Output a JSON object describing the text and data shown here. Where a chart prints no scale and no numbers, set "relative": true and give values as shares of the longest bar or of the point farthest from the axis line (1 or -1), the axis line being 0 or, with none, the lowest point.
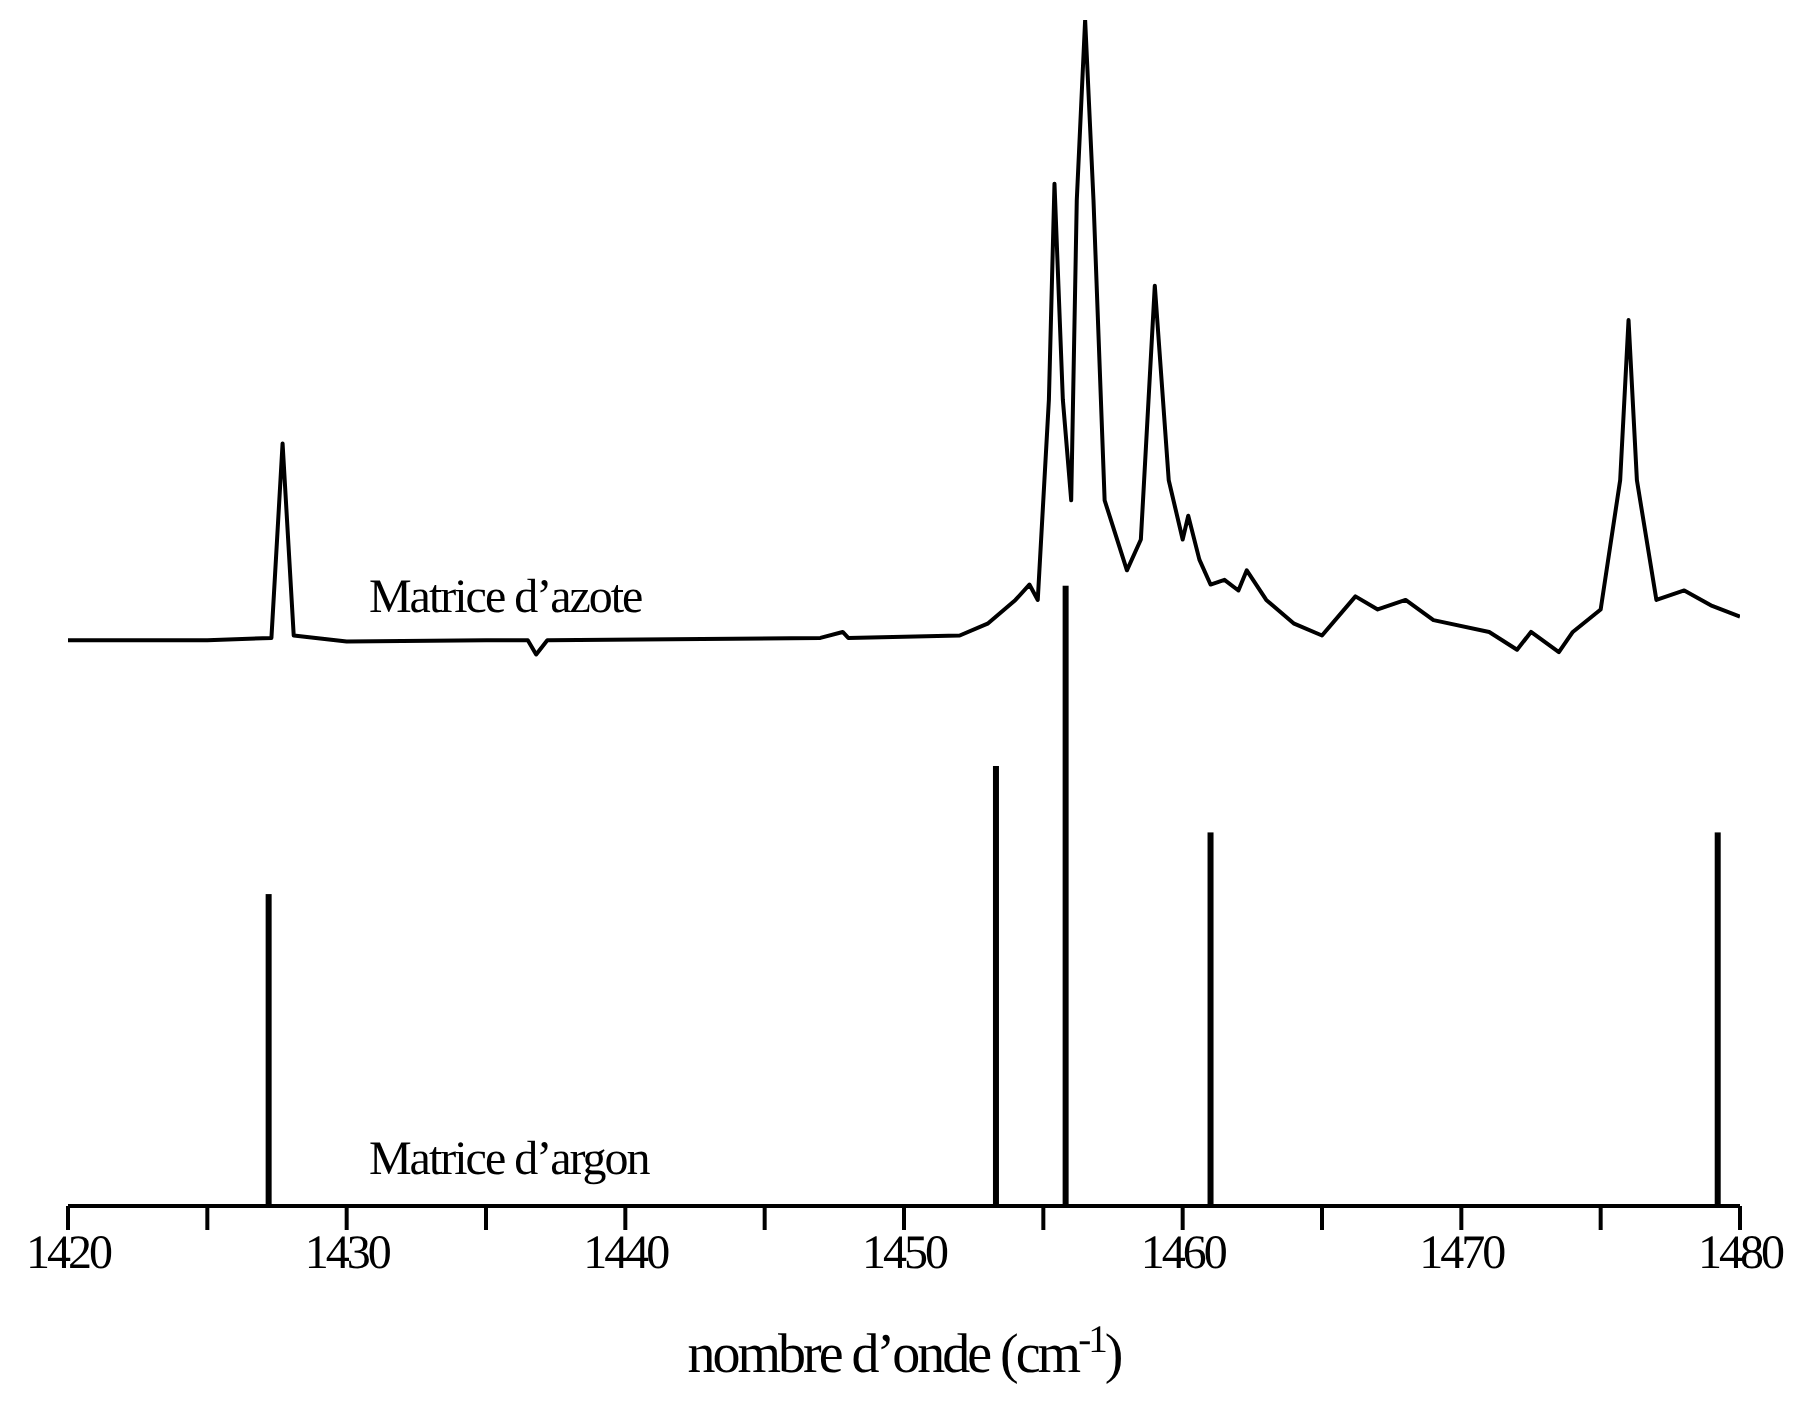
{
  "chart_data": {
    "type": "line",
    "relative": true,
    "xlabel": "nombre d’onde (cm$^{-1}$)",
    "xlim": [
      1420,
      1480
    ],
    "xticks": [
      1420,
      {
        "value": 1425,
        "label": null
      },
      1430,
      {
        "value": 1435,
        "label": null
      },
      1440,
      {
        "value": 1445,
        "label": null
      },
      1450,
      {
        "value": 1455,
        "label": null
      },
      1460,
      {
        "value": 1465,
        "label": null
      },
      1470,
      {
        "value": 1475,
        "label": null
      },
      1480
    ],
    "grid": false,
    "legend": false,
    "marker": "none",
    "line_style": "solid",
    "series": [
      {
        "name": "Matrice d’azote",
        "color": "#000000",
        "x": [
          1420,
          1425,
          1427.3,
          1427.7,
          1428.1,
          1430,
          1435,
          1436.5,
          1436.8,
          1437.2,
          1447,
          1447.8,
          1448,
          1452,
          1453,
          1454,
          1454.5,
          1454.8,
          1455.2,
          1455.4,
          1455.7,
          1456,
          1456.2,
          1456.5,
          1456.8,
          1457.2,
          1458,
          1458.5,
          1459,
          1459.5,
          1460,
          1460.2,
          1460.6,
          1461,
          1461.5,
          1462,
          1462.3,
          1463,
          1464,
          1465,
          1466.2,
          1467,
          1468,
          1469,
          1471,
          1472,
          1472.5,
          1473.5,
          1474,
          1475,
          1475.7,
          1476,
          1476.3,
          1477,
          1478,
          1479,
          1480
        ],
        "values": [
          0.477,
          0.477,
          0.479,
          0.643,
          0.481,
          0.476,
          0.477,
          0.477,
          0.465,
          0.477,
          0.479,
          0.484,
          0.479,
          0.481,
          0.491,
          0.511,
          0.524,
          0.511,
          0.68,
          0.862,
          0.68,
          0.595,
          0.848,
          1,
          0.848,
          0.595,
          0.536,
          0.562,
          0.776,
          0.612,
          0.562,
          0.582,
          0.545,
          0.524,
          0.528,
          0.519,
          0.536,
          0.511,
          0.491,
          0.481,
          0.514,
          0.503,
          0.511,
          0.494,
          0.484,
          0.469,
          0.484,
          0.467,
          0.484,
          0.503,
          0.612,
          0.747,
          0.612,
          0.511,
          0.519,
          0.506,
          0.497
        ]
      },
      {
        "name": "Matrice d’argon",
        "type": "bar",
        "color": "#000000",
        "x": [
          1427.2,
          1453.3,
          1455.8,
          1461.0,
          1479.2
        ],
        "values": [
          0.263,
          0.371,
          0.523,
          0.315,
          0.315
        ]
      }
    ]
  }
}
